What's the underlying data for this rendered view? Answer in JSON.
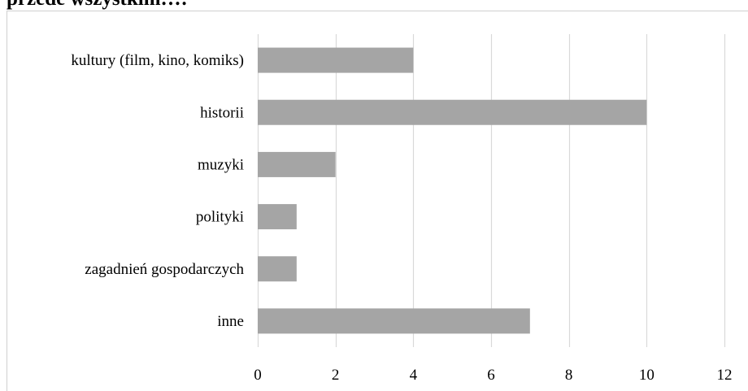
{
  "title": "przede wszystkim…:",
  "chart_data": {
    "type": "bar",
    "orientation": "horizontal",
    "title": "przede wszystkim…:",
    "categories": [
      "kultury (film, kino, komiks)",
      "historii",
      "muzyki",
      "polityki",
      "zagadnień gospodarczych",
      "inne"
    ],
    "values": [
      4,
      10,
      2,
      1,
      1,
      7
    ],
    "xlim": [
      0,
      12
    ],
    "x_ticks": [
      "0",
      "2",
      "4",
      "6",
      "8",
      "10",
      "12"
    ],
    "xlabel": "",
    "ylabel": "",
    "grid": "vertical",
    "legend": "none",
    "bar_color": "#a5a5a5",
    "grid_color": "#d9d9d9"
  }
}
